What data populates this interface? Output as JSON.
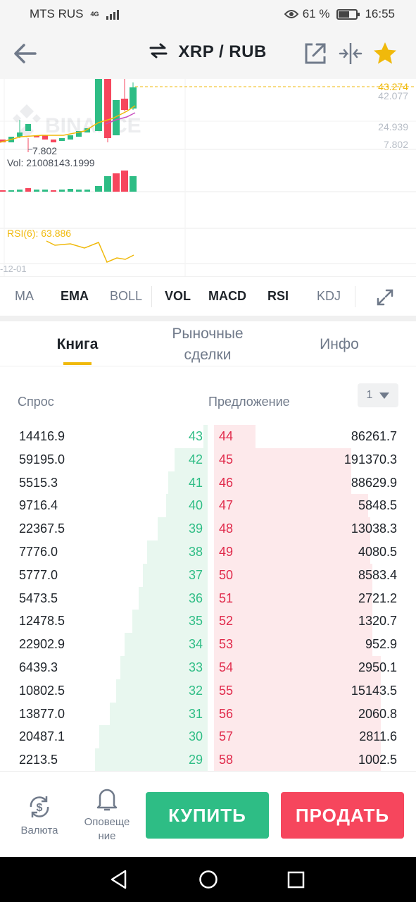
{
  "status_bar": {
    "carrier": "MTS RUS",
    "network": "4G",
    "battery_percent": "61 %",
    "battery_level": 0.61,
    "time": "16:55"
  },
  "header": {
    "pair": "XRP / RUB",
    "icons": [
      "back-arrow-icon",
      "swap-icon",
      "external-link-icon",
      "compare-icon",
      "star-icon"
    ],
    "star_color": "#f0b90b"
  },
  "chart": {
    "watermark": "BINANCE",
    "price_labels": {
      "current": "43.274",
      "high": "42.077",
      "mid": "24.939",
      "low": "7.802",
      "min_marker": "7.802"
    },
    "vol_label": "Vol: 21008143.1999",
    "rsi_label": "RSI(6): 63.886",
    "date_label": "-12-01",
    "colors": {
      "up": "#2ebd85",
      "down": "#f6465d",
      "ma": "#f0b90b",
      "ma2": "#c850c0"
    }
  },
  "indicators": [
    "MA",
    "EMA",
    "BOLL",
    "VOL",
    "MACD",
    "RSI",
    "KDJ"
  ],
  "indicators_bold": [
    false,
    true,
    false,
    true,
    true,
    true,
    false
  ],
  "tabs": {
    "book": "Книга",
    "trades_line1": "Рыночные",
    "trades_line2": "сделки",
    "info": "Инфо"
  },
  "orderbook": {
    "bid_label": "Спрос",
    "ask_label": "Предложение",
    "depth": "1",
    "rows": [
      {
        "bid_qty": "14416.9",
        "bid_price": "43",
        "ask_price": "44",
        "ask_qty": "86261.7"
      },
      {
        "bid_qty": "59195.0",
        "bid_price": "42",
        "ask_price": "45",
        "ask_qty": "191370.3"
      },
      {
        "bid_qty": "5515.3",
        "bid_price": "41",
        "ask_price": "46",
        "ask_qty": "88629.9"
      },
      {
        "bid_qty": "9716.4",
        "bid_price": "40",
        "ask_price": "47",
        "ask_qty": "5848.5"
      },
      {
        "bid_qty": "22367.5",
        "bid_price": "39",
        "ask_price": "48",
        "ask_qty": "13038.3"
      },
      {
        "bid_qty": "7776.0",
        "bid_price": "38",
        "ask_price": "49",
        "ask_qty": "4080.5"
      },
      {
        "bid_qty": "5777.0",
        "bid_price": "37",
        "ask_price": "50",
        "ask_qty": "8583.4"
      },
      {
        "bid_qty": "5473.5",
        "bid_price": "36",
        "ask_price": "51",
        "ask_qty": "2721.2"
      },
      {
        "bid_qty": "12478.5",
        "bid_price": "35",
        "ask_price": "52",
        "ask_qty": "1320.7"
      },
      {
        "bid_qty": "22902.9",
        "bid_price": "34",
        "ask_price": "53",
        "ask_qty": "952.9"
      },
      {
        "bid_qty": "6439.3",
        "bid_price": "33",
        "ask_price": "54",
        "ask_qty": "2950.1"
      },
      {
        "bid_qty": "10802.5",
        "bid_price": "32",
        "ask_price": "55",
        "ask_qty": "15143.5"
      },
      {
        "bid_qty": "13877.0",
        "bid_price": "31",
        "ask_price": "56",
        "ask_qty": "2060.8"
      },
      {
        "bid_qty": "20487.1",
        "bid_price": "30",
        "ask_price": "57",
        "ask_qty": "2811.6"
      },
      {
        "bid_qty": "2213.5",
        "bid_price": "29",
        "ask_price": "58",
        "ask_qty": "1002.5"
      }
    ],
    "bid_depth": [
      0.02,
      0.16,
      0.19,
      0.2,
      0.24,
      0.29,
      0.31,
      0.33,
      0.36,
      0.4,
      0.42,
      0.44,
      0.47,
      0.52,
      0.54
    ],
    "ask_depth": [
      0.2,
      0.66,
      0.66,
      0.74,
      0.75,
      0.75,
      0.76,
      0.76,
      0.76,
      0.76,
      0.8,
      0.8,
      0.8,
      0.8,
      0.8
    ],
    "bid_color": "#2ebd85",
    "ask_color": "#e0294a"
  },
  "bottom": {
    "currency_label": "Валюта",
    "alerts_line1": "Оповеще",
    "alerts_line2": "ние",
    "buy": "КУПИТЬ",
    "sell": "ПРОДАТЬ"
  }
}
